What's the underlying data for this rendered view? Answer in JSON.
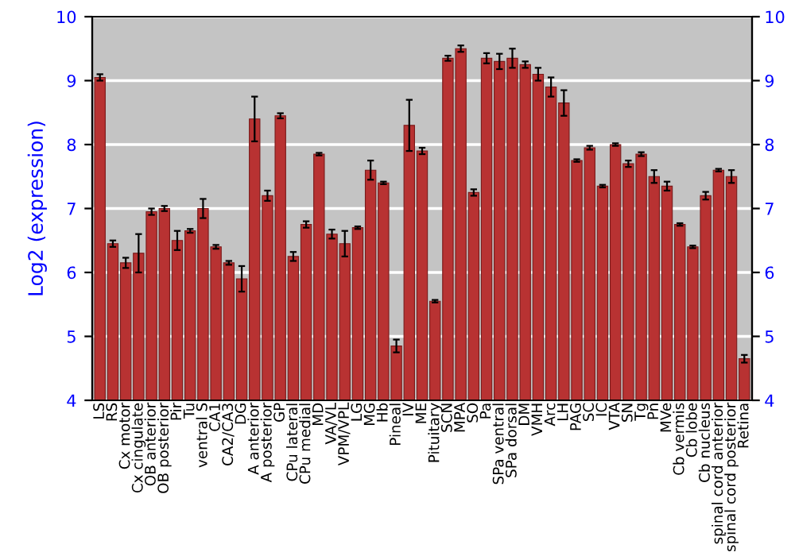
{
  "chart_data": {
    "type": "bar",
    "ylabel": "Log2 (expression)",
    "categories": [
      "LS",
      "RS",
      "Cx motor",
      "Cx cingulate",
      "OB anterior",
      "OB posterior",
      "Pir",
      "Tu",
      "ventral S",
      "CA1",
      "CA2/CA3",
      "DG",
      "A anterior",
      "A posterior",
      "GP",
      "CPu lateral",
      "CPu medial",
      "MD",
      "VA/VL",
      "VPM/VPL",
      "LG",
      "MG",
      "Hb",
      "Pineal",
      "IV",
      "ME",
      "Pituitary",
      "SCN",
      "MPA",
      "SO",
      "Pa",
      "SPa ventral",
      "SPa dorsal",
      "DM",
      "VMH",
      "Arc",
      "LH",
      "PAG",
      "SC",
      "IC",
      "VTA",
      "SN",
      "Tg",
      "Pn",
      "MVe",
      "Cb vermis",
      "Cb lobe",
      "Cb nucleus",
      "spinal cord anterior",
      "spinal cord posterior",
      "Retina"
    ],
    "values": [
      9.05,
      6.45,
      6.15,
      6.3,
      6.95,
      7.0,
      6.5,
      6.65,
      7.0,
      6.4,
      6.15,
      5.9,
      8.4,
      7.2,
      8.45,
      6.25,
      6.75,
      7.85,
      6.6,
      6.45,
      6.7,
      7.6,
      7.4,
      4.85,
      8.3,
      7.9,
      5.55,
      9.35,
      9.5,
      7.25,
      9.35,
      9.3,
      9.35,
      9.25,
      9.1,
      8.9,
      8.65,
      7.75,
      7.95,
      7.35,
      8.0,
      7.7,
      7.85,
      7.5,
      7.35,
      6.75,
      6.4,
      7.2,
      7.6,
      7.5,
      4.65
    ],
    "errors": [
      0.05,
      0.05,
      0.08,
      0.3,
      0.05,
      0.04,
      0.15,
      0.03,
      0.15,
      0.03,
      0.03,
      0.2,
      0.35,
      0.08,
      0.04,
      0.07,
      0.05,
      0.02,
      0.07,
      0.2,
      0.02,
      0.15,
      0.02,
      0.1,
      0.4,
      0.05,
      0.02,
      0.04,
      0.05,
      0.05,
      0.08,
      0.12,
      0.15,
      0.05,
      0.1,
      0.15,
      0.2,
      0.02,
      0.03,
      0.02,
      0.02,
      0.05,
      0.03,
      0.1,
      0.07,
      0.02,
      0.02,
      0.06,
      0.02,
      0.1,
      0.06
    ],
    "color": "#b83232",
    "ylim": [
      4,
      10
    ],
    "yticks": [
      4,
      5,
      6,
      7,
      8,
      9,
      10
    ],
    "y2lim": [
      4,
      10
    ],
    "y2ticks": [
      4,
      5,
      6,
      7,
      8,
      9,
      10
    ],
    "grid": "y",
    "legend": false
  }
}
